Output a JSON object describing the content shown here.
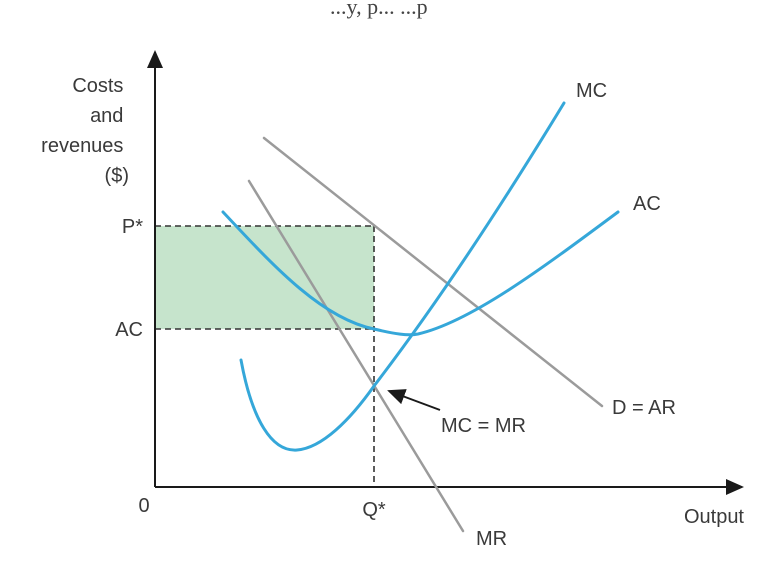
{
  "top_text_fragment": "...y, p... ...p",
  "axes": {
    "y_label_lines": [
      "Costs",
      "and",
      "revenues",
      "($)"
    ],
    "x_label": "Output",
    "origin": "0"
  },
  "ticks": {
    "p_star": "P*",
    "ac": "AC",
    "q_star": "Q*"
  },
  "curves": {
    "mc": "MC",
    "ac": "AC",
    "demand": "D = AR",
    "mr": "MR"
  },
  "annotation": "MC = MR",
  "colors": {
    "curve_blue": "#35a7d9",
    "line_grey": "#9b9b9b",
    "profit_fill": "#c6e4cc",
    "axis": "#1a1a1a"
  }
}
